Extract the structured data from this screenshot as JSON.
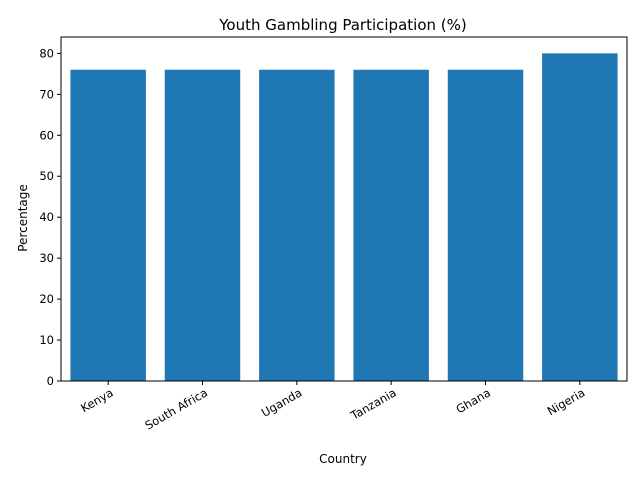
{
  "chart_data": {
    "type": "bar",
    "title": "Youth Gambling Participation (%)",
    "xlabel": "Country",
    "ylabel": "Percentage",
    "categories": [
      "Kenya",
      "South Africa",
      "Uganda",
      "Tanzania",
      "Ghana",
      "Nigeria"
    ],
    "values": [
      76,
      76,
      76,
      76,
      76,
      80
    ],
    "ylim": [
      0,
      84
    ],
    "yticks": [
      0,
      10,
      20,
      30,
      40,
      50,
      60,
      70,
      80
    ],
    "xtick_rotation_deg": 30,
    "grid": false,
    "legend": "none",
    "bar_color": "#1f77b4"
  }
}
